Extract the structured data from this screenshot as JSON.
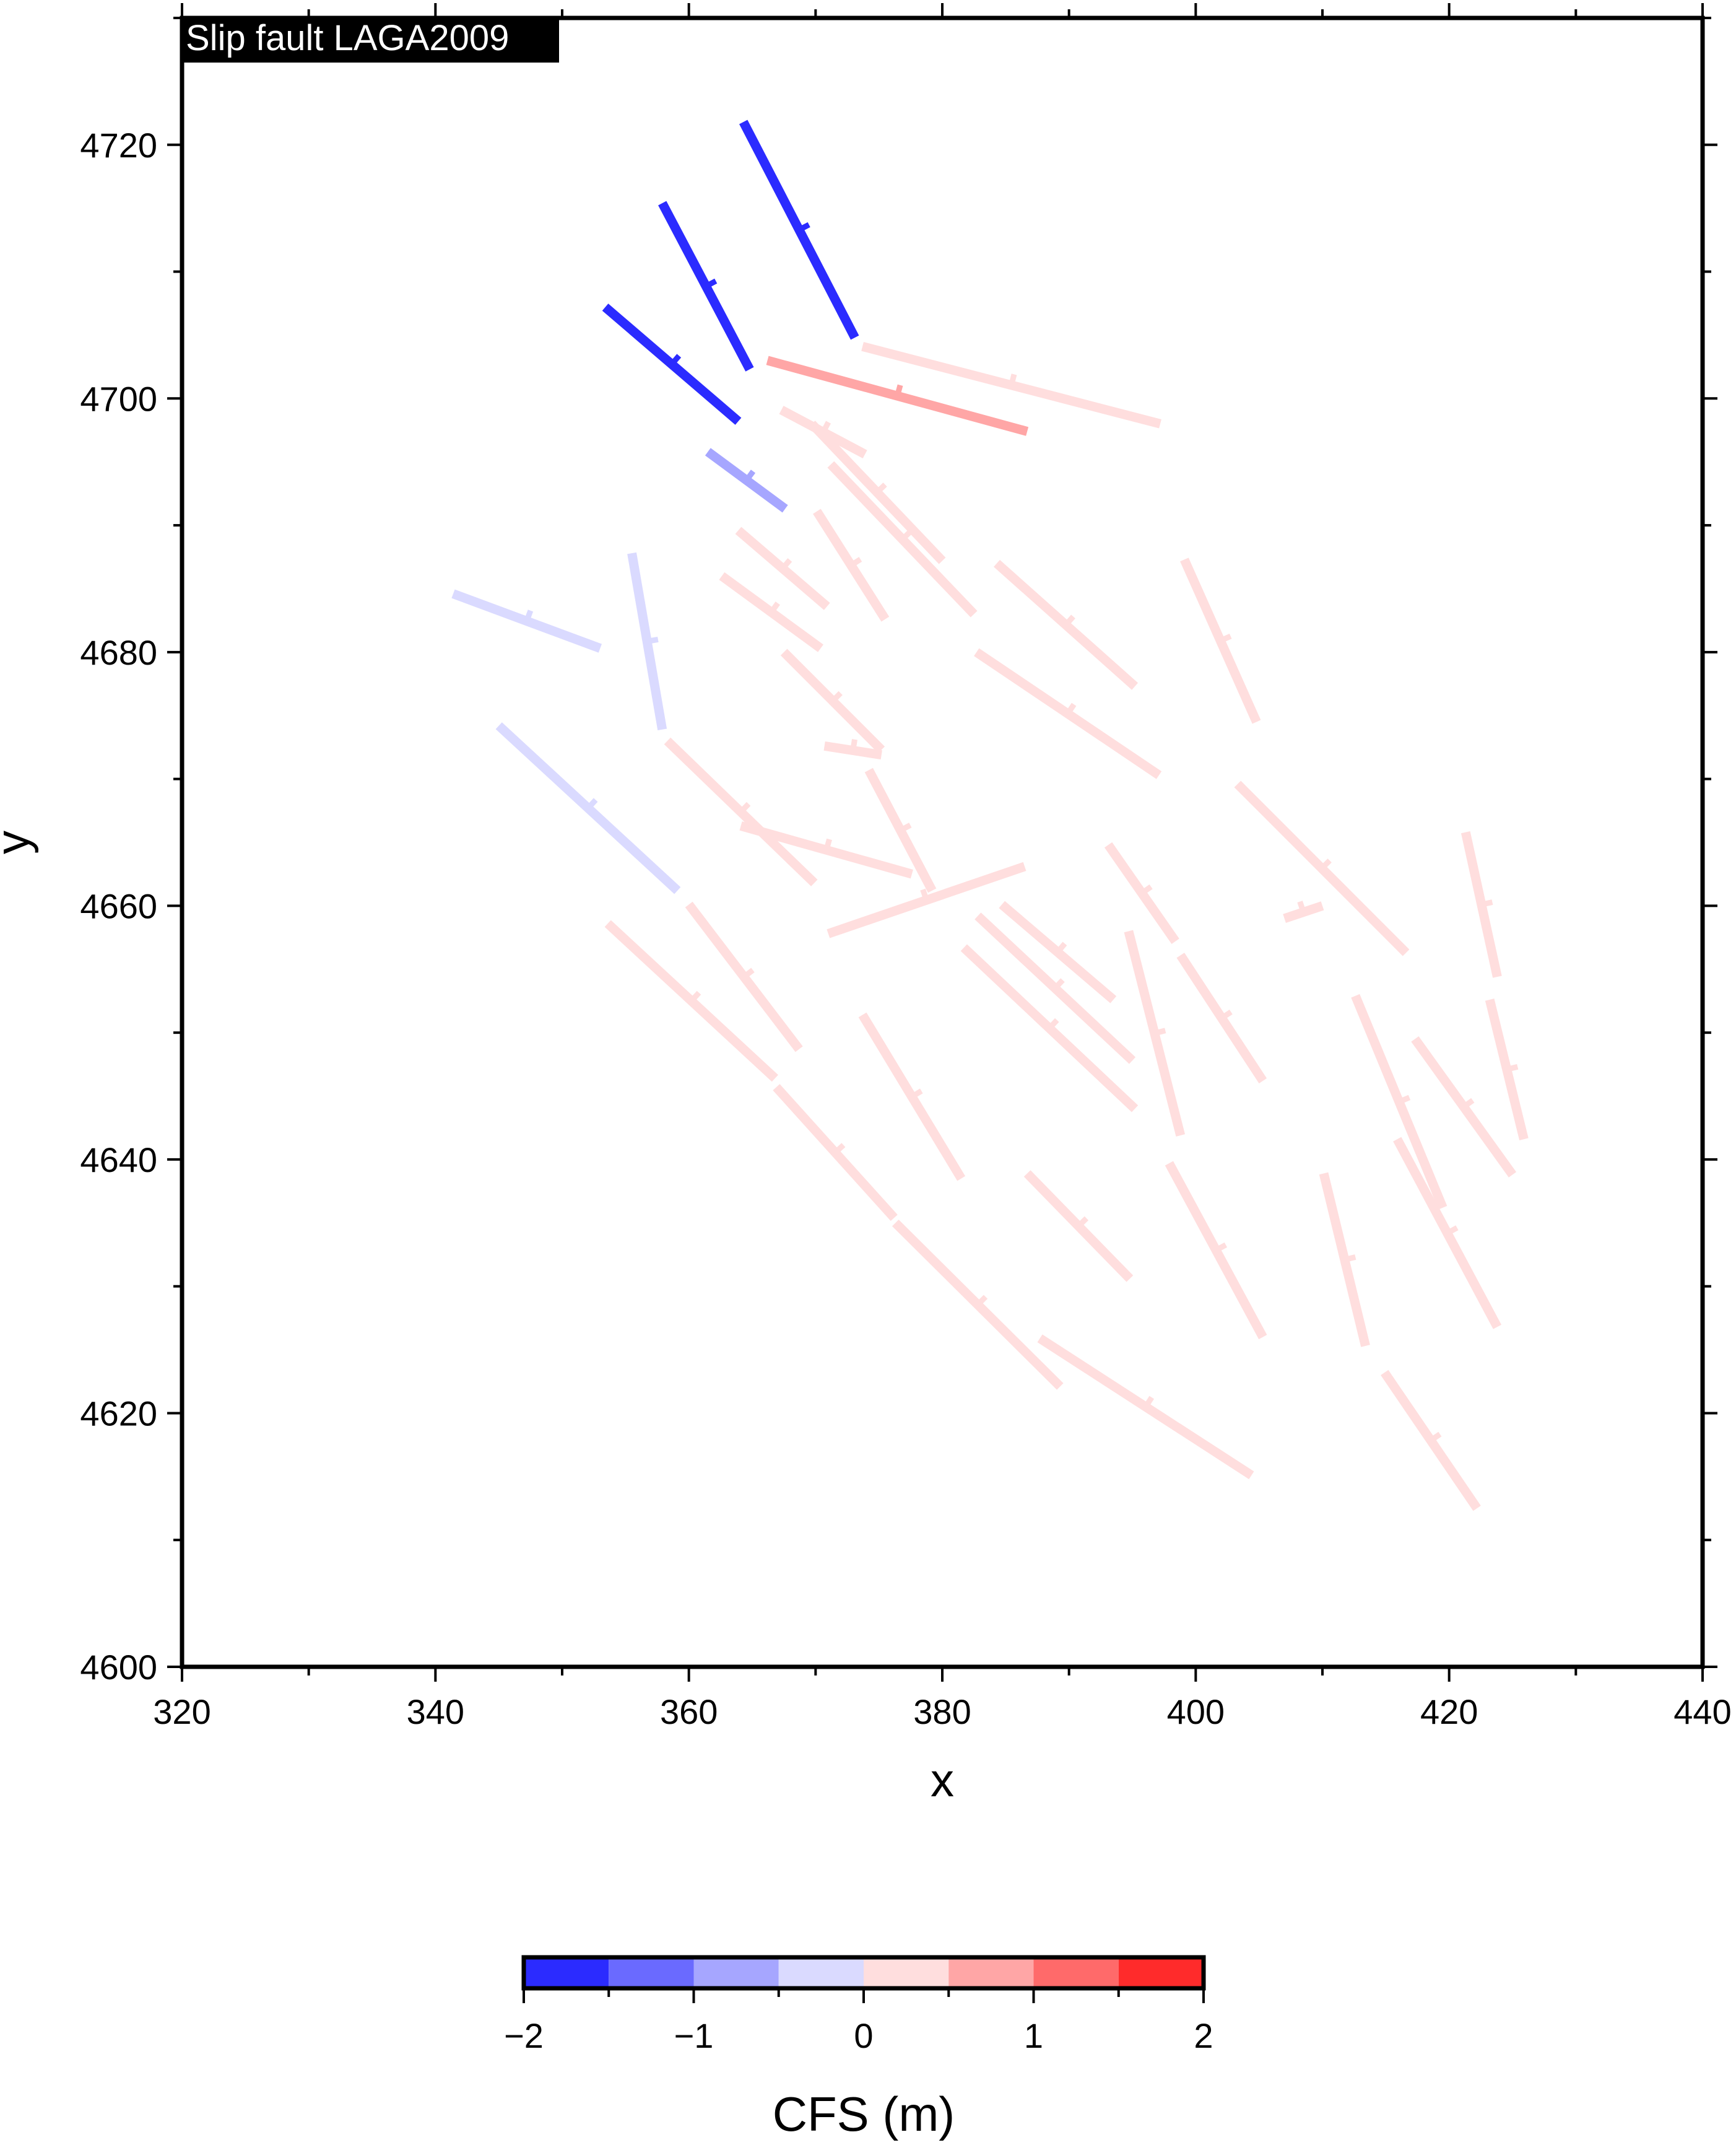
{
  "chart_data": {
    "type": "fault-map",
    "title": "Slip fault LAGA2009",
    "xlabel": "x",
    "ylabel": "y",
    "xlim": [
      320,
      440
    ],
    "ylim": [
      4600,
      4730
    ],
    "xticks": [
      320,
      340,
      360,
      380,
      400,
      420,
      440
    ],
    "yticks": [
      4600,
      4620,
      4640,
      4660,
      4680,
      4700,
      4720
    ],
    "colorbar": {
      "title": "CFS (m)",
      "range": [
        -2,
        2
      ],
      "ticks": [
        -2,
        -1,
        0,
        1,
        2
      ],
      "tick_labels": [
        "−2",
        "−1",
        "0",
        "1",
        "2"
      ],
      "bins": [
        {
          "from": -2.0,
          "to": -1.5,
          "color": "#2b2bff"
        },
        {
          "from": -1.5,
          "to": -1.0,
          "color": "#6a6aff"
        },
        {
          "from": -1.0,
          "to": -0.5,
          "color": "#a6a6ff"
        },
        {
          "from": -0.5,
          "to": 0.0,
          "color": "#dadaff"
        },
        {
          "from": 0.0,
          "to": 0.5,
          "color": "#ffdede"
        },
        {
          "from": 0.5,
          "to": 1.0,
          "color": "#ffa6a6"
        },
        {
          "from": 1.0,
          "to": 1.5,
          "color": "#ff6a6a"
        },
        {
          "from": 1.5,
          "to": 2.0,
          "color": "#ff2b2b"
        }
      ]
    },
    "faults": [
      {
        "x1": 364.3,
        "y1": 4721.8,
        "x2": 373.1,
        "y2": 4704.8,
        "cfs": -1.8
      },
      {
        "x1": 357.9,
        "y1": 4715.4,
        "x2": 364.8,
        "y2": 4702.3,
        "cfs": -1.8
      },
      {
        "x1": 353.4,
        "y1": 4707.2,
        "x2": 363.9,
        "y2": 4698.2,
        "cfs": -1.8
      },
      {
        "x1": 361.5,
        "y1": 4695.8,
        "x2": 367.6,
        "y2": 4691.3,
        "cfs": -0.8
      },
      {
        "x1": 366.2,
        "y1": 4703.0,
        "x2": 386.7,
        "y2": 4697.4,
        "cfs": 0.7
      },
      {
        "x1": 373.7,
        "y1": 4704.1,
        "x2": 397.2,
        "y2": 4698.0,
        "cfs": 0.2
      },
      {
        "x1": 367.3,
        "y1": 4699.1,
        "x2": 373.9,
        "y2": 4695.6,
        "cfs": 0.2
      },
      {
        "x1": 369.7,
        "y1": 4698.0,
        "x2": 380.0,
        "y2": 4687.2,
        "cfs": 0.2
      },
      {
        "x1": 371.2,
        "y1": 4694.8,
        "x2": 382.5,
        "y2": 4683.0,
        "cfs": 0.2
      },
      {
        "x1": 370.1,
        "y1": 4691.1,
        "x2": 375.5,
        "y2": 4682.6,
        "cfs": 0.2
      },
      {
        "x1": 363.9,
        "y1": 4689.6,
        "x2": 370.9,
        "y2": 4683.6,
        "cfs": 0.2
      },
      {
        "x1": 362.6,
        "y1": 4686.0,
        "x2": 370.4,
        "y2": 4680.3,
        "cfs": 0.2
      },
      {
        "x1": 367.5,
        "y1": 4680.0,
        "x2": 375.2,
        "y2": 4672.3,
        "cfs": 0.2
      },
      {
        "x1": 370.7,
        "y1": 4672.6,
        "x2": 375.2,
        "y2": 4671.9,
        "cfs": 0.2
      },
      {
        "x1": 374.2,
        "y1": 4670.7,
        "x2": 379.2,
        "y2": 4661.2,
        "cfs": 0.2
      },
      {
        "x1": 364.1,
        "y1": 4666.3,
        "x2": 377.6,
        "y2": 4662.5,
        "cfs": 0.2
      },
      {
        "x1": 358.3,
        "y1": 4673.0,
        "x2": 369.9,
        "y2": 4661.8,
        "cfs": 0.2
      },
      {
        "x1": 341.4,
        "y1": 4684.6,
        "x2": 353.0,
        "y2": 4680.3,
        "cfs": -0.2
      },
      {
        "x1": 355.5,
        "y1": 4687.8,
        "x2": 357.9,
        "y2": 4673.9,
        "cfs": -0.2
      },
      {
        "x1": 345.0,
        "y1": 4674.2,
        "x2": 359.1,
        "y2": 4661.2,
        "cfs": -0.2
      },
      {
        "x1": 384.3,
        "y1": 4687.0,
        "x2": 395.2,
        "y2": 4677.3,
        "cfs": 0.2
      },
      {
        "x1": 382.7,
        "y1": 4680.0,
        "x2": 397.1,
        "y2": 4670.3,
        "cfs": 0.2
      },
      {
        "x1": 399.1,
        "y1": 4687.3,
        "x2": 404.8,
        "y2": 4674.5,
        "cfs": 0.2
      },
      {
        "x1": 403.3,
        "y1": 4669.6,
        "x2": 416.6,
        "y2": 4656.3,
        "cfs": 0.2
      },
      {
        "x1": 421.3,
        "y1": 4665.8,
        "x2": 423.8,
        "y2": 4654.4,
        "cfs": 0.2
      },
      {
        "x1": 393.1,
        "y1": 4664.8,
        "x2": 398.4,
        "y2": 4657.2,
        "cfs": 0.2
      },
      {
        "x1": 371.0,
        "y1": 4657.8,
        "x2": 386.5,
        "y2": 4663.1,
        "cfs": 0.2
      },
      {
        "x1": 360.0,
        "y1": 4660.1,
        "x2": 368.7,
        "y2": 4648.7,
        "cfs": 0.2
      },
      {
        "x1": 353.6,
        "y1": 4658.6,
        "x2": 366.8,
        "y2": 4646.4,
        "cfs": 0.2
      },
      {
        "x1": 384.7,
        "y1": 4660.1,
        "x2": 393.5,
        "y2": 4652.6,
        "cfs": 0.2
      },
      {
        "x1": 382.8,
        "y1": 4659.2,
        "x2": 395.0,
        "y2": 4647.8,
        "cfs": 0.2
      },
      {
        "x1": 381.7,
        "y1": 4656.7,
        "x2": 395.2,
        "y2": 4644.0,
        "cfs": 0.2
      },
      {
        "x1": 394.7,
        "y1": 4658.0,
        "x2": 398.8,
        "y2": 4641.9,
        "cfs": 0.2
      },
      {
        "x1": 398.8,
        "y1": 4656.1,
        "x2": 405.3,
        "y2": 4646.2,
        "cfs": 0.2
      },
      {
        "x1": 407.0,
        "y1": 4659.0,
        "x2": 410.0,
        "y2": 4660.0,
        "cfs": 0.0
      },
      {
        "x1": 373.7,
        "y1": 4651.4,
        "x2": 381.5,
        "y2": 4638.5,
        "cfs": 0.2
      },
      {
        "x1": 366.9,
        "y1": 4645.7,
        "x2": 376.2,
        "y2": 4635.4,
        "cfs": 0.2
      },
      {
        "x1": 376.3,
        "y1": 4635.0,
        "x2": 389.3,
        "y2": 4622.1,
        "cfs": 0.2
      },
      {
        "x1": 386.7,
        "y1": 4638.9,
        "x2": 394.8,
        "y2": 4630.6,
        "cfs": 0.2
      },
      {
        "x1": 397.9,
        "y1": 4639.7,
        "x2": 405.3,
        "y2": 4626.0,
        "cfs": 0.2
      },
      {
        "x1": 412.6,
        "y1": 4652.9,
        "x2": 419.5,
        "y2": 4636.2,
        "cfs": 0.2
      },
      {
        "x1": 417.3,
        "y1": 4649.5,
        "x2": 425.0,
        "y2": 4638.8,
        "cfs": 0.2
      },
      {
        "x1": 423.2,
        "y1": 4652.6,
        "x2": 425.9,
        "y2": 4641.6,
        "cfs": 0.2
      },
      {
        "x1": 415.9,
        "y1": 4641.6,
        "x2": 423.8,
        "y2": 4626.8,
        "cfs": 0.2
      },
      {
        "x1": 410.1,
        "y1": 4638.9,
        "x2": 413.4,
        "y2": 4625.3,
        "cfs": 0.2
      },
      {
        "x1": 414.9,
        "y1": 4623.2,
        "x2": 422.2,
        "y2": 4612.5,
        "cfs": 0.2
      },
      {
        "x1": 387.7,
        "y1": 4625.9,
        "x2": 404.4,
        "y2": 4615.1,
        "cfs": 0.2
      }
    ]
  }
}
